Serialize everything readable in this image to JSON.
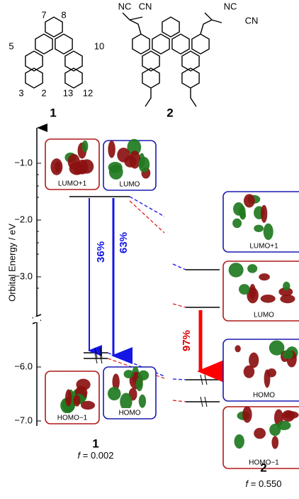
{
  "structures": {
    "atom_numbers": [
      "7",
      "8",
      "5",
      "10",
      "3",
      "2",
      "13",
      "12"
    ],
    "substituents": [
      "NC",
      "CN",
      "NC",
      "CN"
    ],
    "labels": [
      "1",
      "2"
    ]
  },
  "axis": {
    "title": "Orbital Energy / eV",
    "ticks": [
      "−1.0",
      "−2.0",
      "−3.0",
      "−6.0",
      "−7.0"
    ]
  },
  "compound1": {
    "orbitals": [
      "LUMO+1",
      "LUMO",
      "HOMO−1",
      "HOMO"
    ],
    "transitions": [
      "36%",
      "63%"
    ],
    "label": "1",
    "f": {
      "symbol": "f",
      "text": "= 0.002"
    }
  },
  "compound2": {
    "orbitals": [
      "LUMO+1",
      "LUMO",
      "HOMO",
      "HOMO−1"
    ],
    "transitions": [
      "97%"
    ],
    "label": "2",
    "f": {
      "symbol": "f",
      "text": "= 0.550"
    }
  }
}
